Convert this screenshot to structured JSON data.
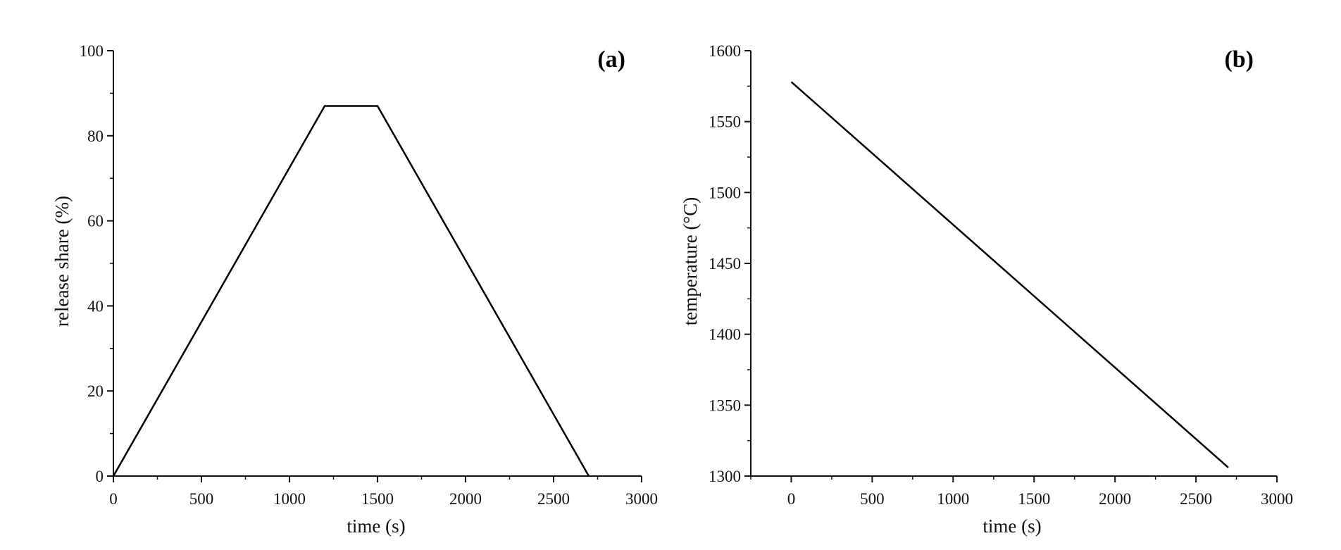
{
  "colors": {
    "line": "#000000",
    "axis": "#111111",
    "background": "#ffffff"
  },
  "chart_data": [
    {
      "type": "line",
      "panel_label": "(a)",
      "xlabel": "time (s)",
      "ylabel": "release share (%)",
      "xlim": [
        0,
        3000
      ],
      "ylim": [
        0,
        100
      ],
      "x_ticks": [
        0,
        500,
        1000,
        1500,
        2000,
        2500,
        3000
      ],
      "y_ticks": [
        0,
        20,
        40,
        60,
        80,
        100
      ],
      "grid": false,
      "series": [
        {
          "x": [
            0,
            1200,
            1500,
            2700
          ],
          "y": [
            0,
            87,
            87,
            0
          ]
        }
      ]
    },
    {
      "type": "line",
      "panel_label": "(b)",
      "xlabel": "time (s)",
      "ylabel": "temperature (°C)",
      "xlim": [
        -250,
        3000
      ],
      "ylim": [
        1300,
        1600
      ],
      "x_ticks": [
        0,
        500,
        1000,
        1500,
        2000,
        2500,
        3000
      ],
      "y_ticks": [
        1300,
        1350,
        1400,
        1450,
        1500,
        1550,
        1600
      ],
      "grid": false,
      "series": [
        {
          "x": [
            0,
            2700
          ],
          "y": [
            1578,
            1306
          ]
        }
      ]
    }
  ]
}
